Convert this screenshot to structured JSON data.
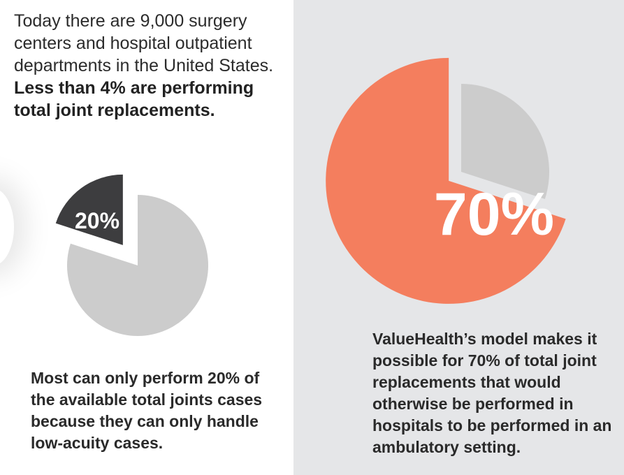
{
  "intro": {
    "normal": "Today there are 9,000 surgery centers and hospital outpatient departments in the United States. ",
    "bold": "Less than 4% are performing total joint replacements."
  },
  "chart_data": [
    {
      "type": "pie",
      "slices": [
        {
          "value": 20,
          "label": "20%",
          "color": "#3d3d3f",
          "exploded": true
        },
        {
          "value": 80,
          "color": "#cccccc"
        }
      ]
    },
    {
      "type": "pie",
      "slices": [
        {
          "value": 70,
          "label": "70%",
          "color": "#f47e5e",
          "exploded": true
        },
        {
          "value": 30,
          "color": "#cccccc"
        }
      ]
    }
  ],
  "captions": {
    "left": "Most can only perform 20% of the available total joints cases because they can only handle low-acuity cases.",
    "right": "ValueHealth’s model makes it possible for 70% of total joint replacements that would otherwise be performed in hospitals to be performed in an ambulatory setting."
  },
  "colors": {
    "left_background": "#ffffff",
    "right_background": "#e5e6e8",
    "accent": "#f47e5e",
    "dark_slice": "#3d3d3f",
    "neutral_slice": "#cccccc"
  }
}
